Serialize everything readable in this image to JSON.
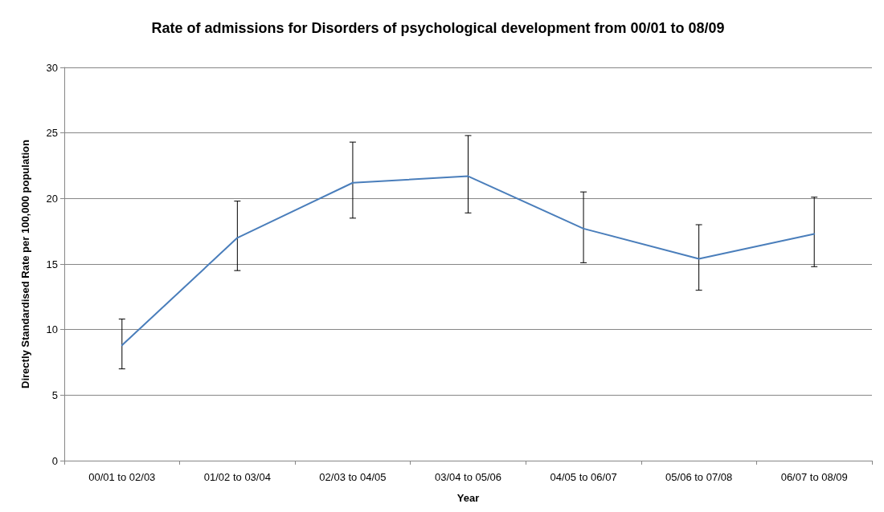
{
  "chart_data": {
    "type": "line",
    "title": "Rate of admissions for Disorders of psychological development from 00/01 to 08/09",
    "xlabel": "Year",
    "ylabel": "Directly Standardised Rate per 100,000 population",
    "categories": [
      "00/01 to 02/03",
      "01/02 to 03/04",
      "02/03 to 04/05",
      "03/04 to 05/06",
      "04/05 to 06/07",
      "05/06 to 07/08",
      "06/07 to 08/09"
    ],
    "series": [
      {
        "color": "#4a7ebb",
        "values": [
          8.8,
          17.0,
          21.2,
          21.7,
          17.7,
          15.4,
          17.3
        ],
        "errors": [
          [
            7.0,
            10.8
          ],
          [
            14.5,
            19.8
          ],
          [
            18.5,
            24.3
          ],
          [
            18.9,
            24.8
          ],
          [
            15.1,
            20.5
          ],
          [
            13.0,
            18.0
          ],
          [
            14.8,
            20.1
          ]
        ]
      }
    ],
    "ylim": [
      0,
      30
    ],
    "yticks": [
      0,
      5,
      10,
      15,
      20,
      25,
      30
    ],
    "grid": "y",
    "marker": "none",
    "line_style": "solid"
  }
}
